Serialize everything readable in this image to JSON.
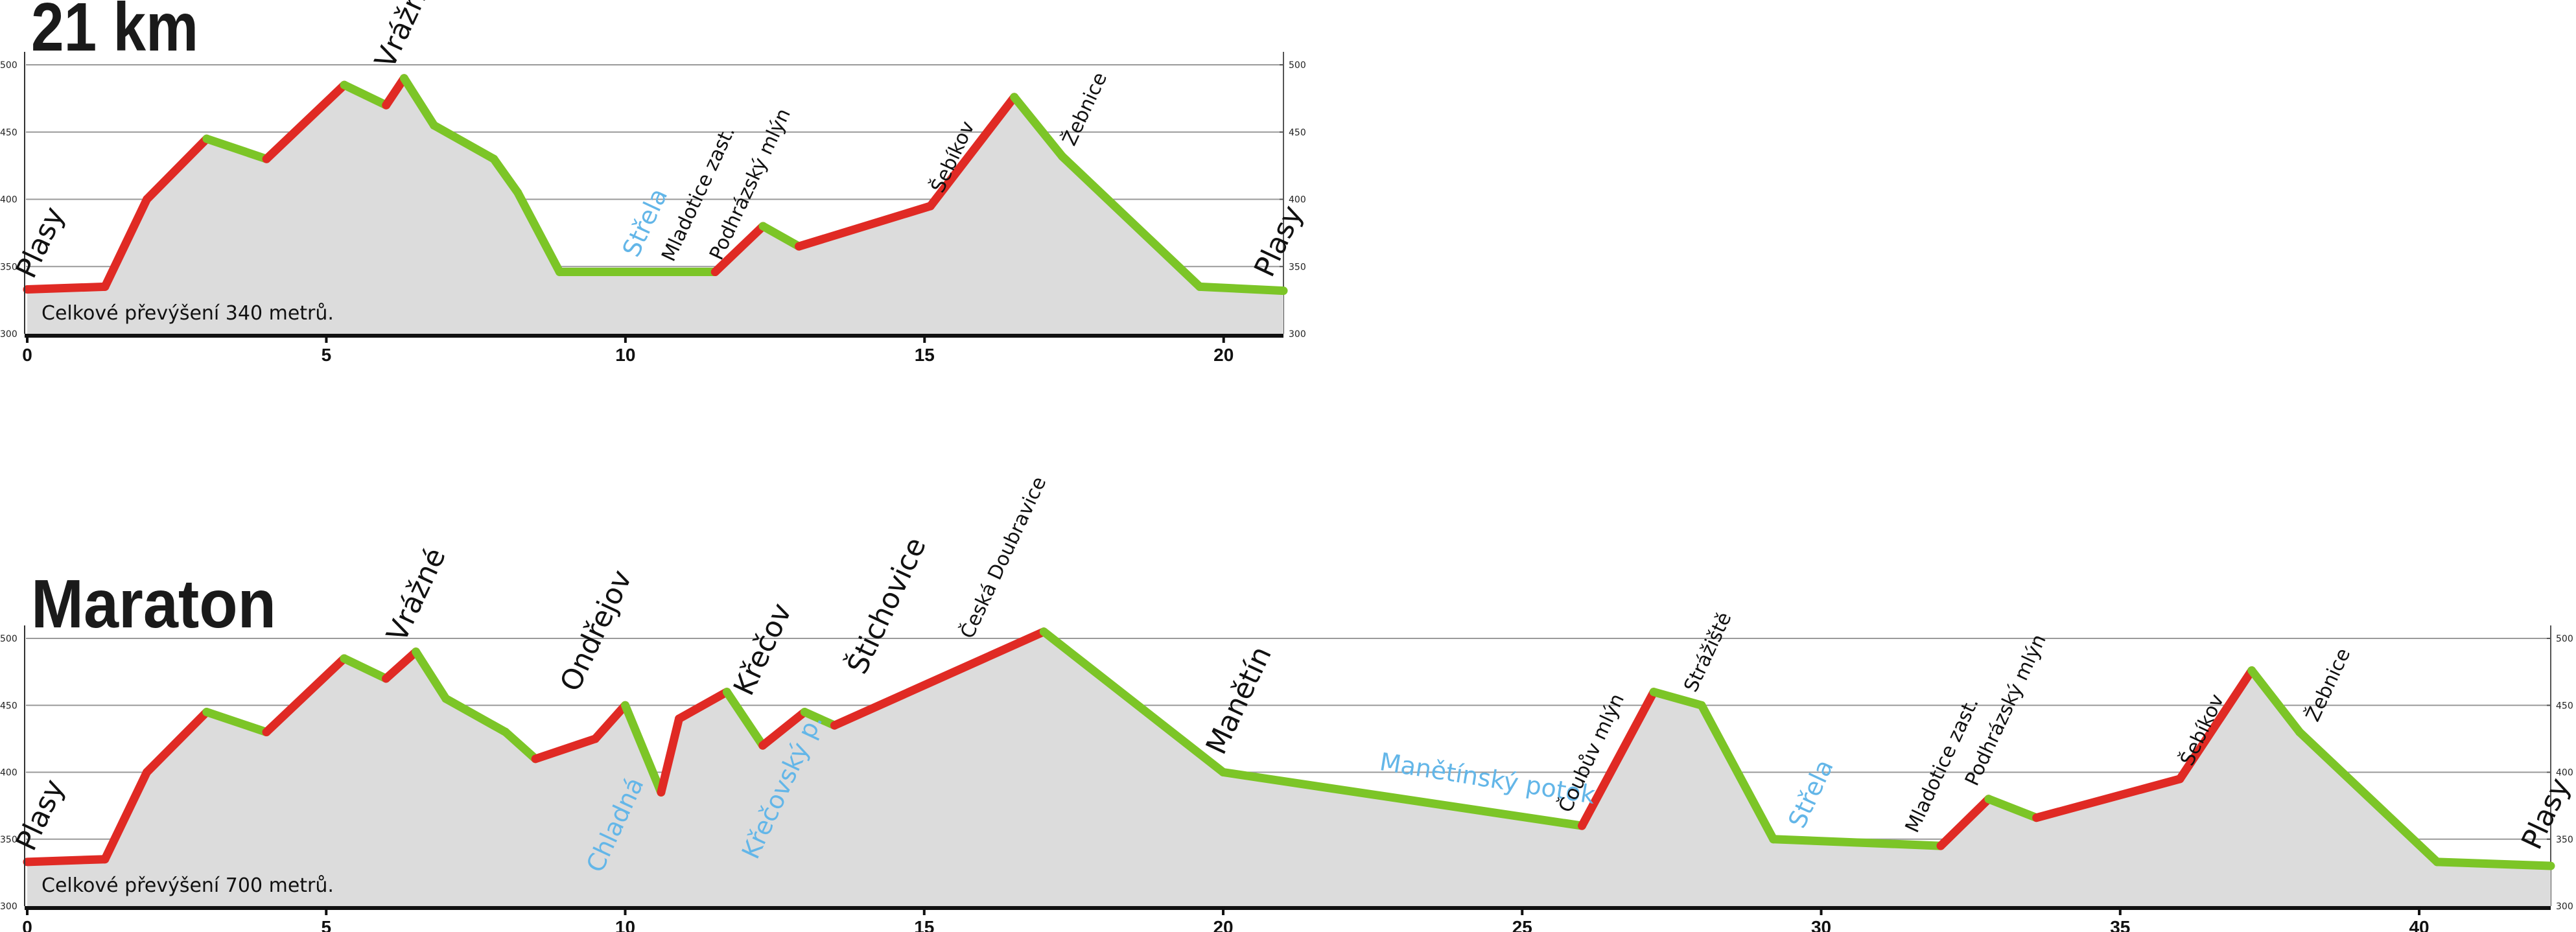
{
  "chart_data": [
    {
      "type": "area",
      "title": "21 km",
      "note": "Celkové převýšení 340 metrů.",
      "xlim": [
        0,
        21
      ],
      "ylim": [
        300,
        500
      ],
      "x_ticks": [
        0,
        5,
        10,
        15,
        20
      ],
      "y_ticks": [
        300,
        350,
        400,
        450,
        500
      ],
      "colors": {
        "ascent": "#e02a24",
        "descent": "#7cc527",
        "fill": "#dcdcdc",
        "water": "#63b6e8"
      },
      "grid": true,
      "profile": [
        [
          0,
          333
        ],
        [
          1.3,
          335
        ],
        [
          2,
          400
        ],
        [
          3,
          445
        ],
        [
          4,
          430
        ],
        [
          5.3,
          485
        ],
        [
          6,
          470
        ],
        [
          6.3,
          490
        ],
        [
          6.8,
          455
        ],
        [
          7.8,
          430
        ],
        [
          8.2,
          405
        ],
        [
          8.9,
          346
        ],
        [
          11.5,
          346
        ],
        [
          12.3,
          380
        ],
        [
          12.9,
          365
        ],
        [
          15.1,
          395
        ],
        [
          16.5,
          476
        ],
        [
          17.3,
          432
        ],
        [
          19.6,
          335
        ],
        [
          21,
          332
        ]
      ],
      "labels": [
        {
          "text": "Plasy",
          "x": 0.1,
          "y": 336,
          "kind": "place",
          "size": "large"
        },
        {
          "text": "Vrážné",
          "x": 6.1,
          "y": 492,
          "kind": "place",
          "size": "large"
        },
        {
          "text": "Střela",
          "x": 10.2,
          "y": 352,
          "kind": "water",
          "size": "medium"
        },
        {
          "text": "Mladotice zast.",
          "x": 10.8,
          "y": 349,
          "kind": "place",
          "size": "small"
        },
        {
          "text": "Podhrázský mlýn",
          "x": 11.6,
          "y": 350,
          "kind": "place",
          "size": "small"
        },
        {
          "text": "Šebíkov",
          "x": 15.3,
          "y": 400,
          "kind": "place",
          "size": "small"
        },
        {
          "text": "Žebnice",
          "x": 17.5,
          "y": 435,
          "kind": "place",
          "size": "small"
        },
        {
          "text": "Plasy",
          "x": 20.8,
          "y": 337,
          "kind": "place",
          "size": "large"
        }
      ]
    },
    {
      "type": "area",
      "title": "Maraton",
      "note": "Celkové převýšení 700 metrů.",
      "xlim": [
        0,
        42.2
      ],
      "ylim": [
        300,
        500
      ],
      "x_ticks": [
        0,
        5,
        10,
        15,
        20,
        25,
        30,
        35,
        40
      ],
      "y_ticks": [
        300,
        350,
        400,
        450,
        500
      ],
      "colors": {
        "ascent": "#e02a24",
        "descent": "#7cc527",
        "fill": "#dcdcdc",
        "water": "#63b6e8"
      },
      "grid": true,
      "profile": [
        [
          0,
          333
        ],
        [
          1.3,
          335
        ],
        [
          2,
          400
        ],
        [
          3,
          445
        ],
        [
          4,
          430
        ],
        [
          5.3,
          485
        ],
        [
          6,
          470
        ],
        [
          6.5,
          490
        ],
        [
          7,
          455
        ],
        [
          8,
          430
        ],
        [
          8.5,
          410
        ],
        [
          9.5,
          425
        ],
        [
          10,
          450
        ],
        [
          10.6,
          385
        ],
        [
          10.9,
          440
        ],
        [
          11.7,
          460
        ],
        [
          12.3,
          420
        ],
        [
          13,
          445
        ],
        [
          13.5,
          435
        ],
        [
          17,
          505
        ],
        [
          20,
          400
        ],
        [
          26,
          360
        ],
        [
          27.2,
          460
        ],
        [
          28,
          450
        ],
        [
          29.2,
          350
        ],
        [
          32,
          345
        ],
        [
          32.8,
          380
        ],
        [
          33.6,
          366
        ],
        [
          36,
          395
        ],
        [
          37.2,
          476
        ],
        [
          38,
          430
        ],
        [
          40.3,
          333
        ],
        [
          42.2,
          330
        ]
      ],
      "labels": [
        {
          "text": "Plasy",
          "x": 0.1,
          "y": 336,
          "kind": "place",
          "size": "large"
        },
        {
          "text": "Vrážné",
          "x": 6.3,
          "y": 492,
          "kind": "place",
          "size": "large"
        },
        {
          "text": "Ondřejov",
          "x": 9.2,
          "y": 455,
          "kind": "place",
          "size": "large"
        },
        {
          "text": "Chladná",
          "x": 9.6,
          "y": 320,
          "kind": "water",
          "size": "medium"
        },
        {
          "text": "Křečov",
          "x": 12.1,
          "y": 452,
          "kind": "place",
          "size": "large"
        },
        {
          "text": "Křečovský p.",
          "x": 12.2,
          "y": 330,
          "kind": "water",
          "size": "medium"
        },
        {
          "text": "Štichovice",
          "x": 14,
          "y": 468,
          "kind": "place",
          "size": "large"
        },
        {
          "text": "Česká Doubravice",
          "x": 15.8,
          "y": 495,
          "kind": "place",
          "size": "small"
        },
        {
          "text": "Manětín",
          "x": 20,
          "y": 408,
          "kind": "place",
          "size": "large"
        },
        {
          "text": "Manětínský potok",
          "x": 22.6,
          "y": 398,
          "kind": "water",
          "size": "medium"
        },
        {
          "text": "Čoubův mlýn",
          "x": 25.8,
          "y": 365,
          "kind": "place",
          "size": "small"
        },
        {
          "text": "Strážiště",
          "x": 27.9,
          "y": 455,
          "kind": "place",
          "size": "small"
        },
        {
          "text": "Střela",
          "x": 29.7,
          "y": 353,
          "kind": "water",
          "size": "medium"
        },
        {
          "text": "Mladotice zast.",
          "x": 31.6,
          "y": 350,
          "kind": "place",
          "size": "small"
        },
        {
          "text": "Podhrázský mlýn",
          "x": 32.6,
          "y": 385,
          "kind": "place",
          "size": "small"
        },
        {
          "text": "Šebíkov",
          "x": 36.2,
          "y": 400,
          "kind": "place",
          "size": "small"
        },
        {
          "text": "Žebnice",
          "x": 38.3,
          "y": 433,
          "kind": "place",
          "size": "small"
        },
        {
          "text": "Plasy",
          "x": 42,
          "y": 337,
          "kind": "place",
          "size": "large"
        }
      ]
    }
  ]
}
